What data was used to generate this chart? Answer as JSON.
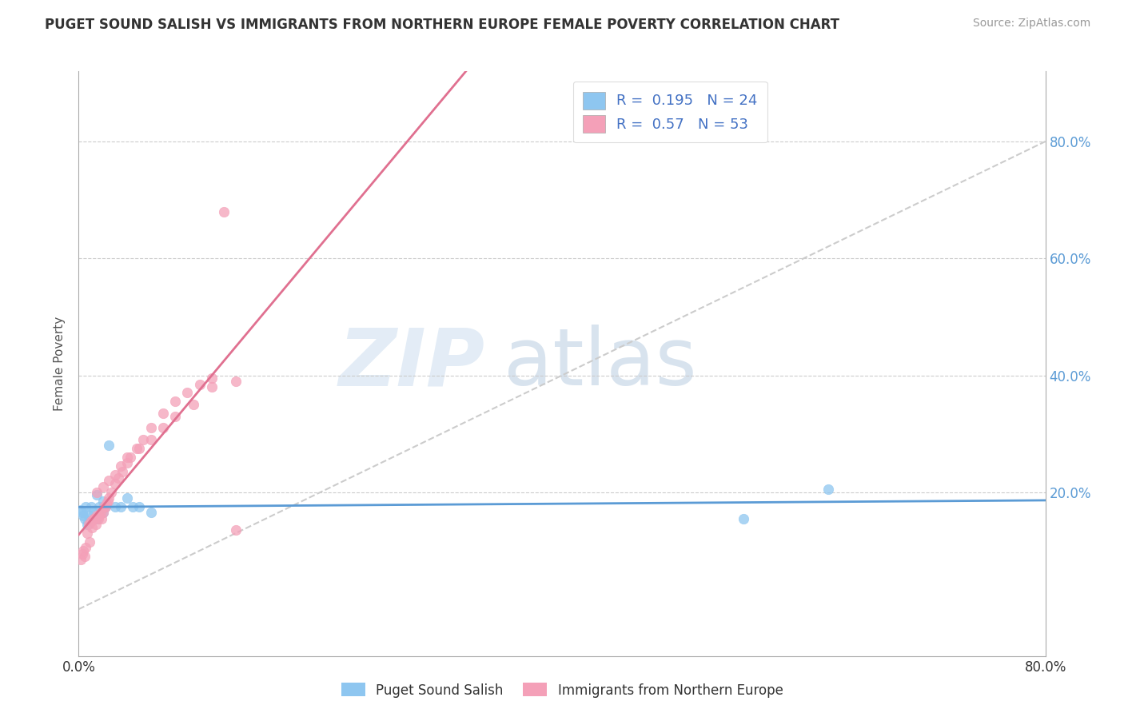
{
  "title": "PUGET SOUND SALISH VS IMMIGRANTS FROM NORTHERN EUROPE FEMALE POVERTY CORRELATION CHART",
  "source": "Source: ZipAtlas.com",
  "ylabel": "Female Poverty",
  "xlim": [
    0.0,
    0.8
  ],
  "ylim": [
    -0.08,
    0.92
  ],
  "xtick_labels": [
    "0.0%",
    "",
    "",
    "",
    "80.0%"
  ],
  "xtick_vals": [
    0.0,
    0.2,
    0.4,
    0.6,
    0.8
  ],
  "ytick_labels": [
    "20.0%",
    "40.0%",
    "60.0%",
    "80.0%"
  ],
  "ytick_vals": [
    0.2,
    0.4,
    0.6,
    0.8
  ],
  "legend_label1": "Puget Sound Salish",
  "legend_label2": "Immigrants from Northern Europe",
  "R1": 0.195,
  "N1": 24,
  "R2": 0.57,
  "N2": 53,
  "color1": "#8EC6F0",
  "color2": "#F4A0B8",
  "line_color1": "#5B9BD5",
  "line_color2": "#E07090",
  "blue_x": [
    0.002,
    0.003,
    0.004,
    0.005,
    0.006,
    0.007,
    0.008,
    0.01,
    0.012,
    0.015,
    0.017,
    0.02,
    0.022,
    0.025,
    0.03,
    0.035,
    0.04,
    0.045,
    0.05,
    0.06,
    0.015,
    0.02,
    0.55,
    0.62
  ],
  "blue_y": [
    0.17,
    0.165,
    0.16,
    0.155,
    0.175,
    0.145,
    0.16,
    0.175,
    0.165,
    0.155,
    0.175,
    0.165,
    0.175,
    0.28,
    0.175,
    0.175,
    0.19,
    0.175,
    0.175,
    0.165,
    0.195,
    0.185,
    0.155,
    0.205
  ],
  "pink_x": [
    0.002,
    0.003,
    0.004,
    0.005,
    0.006,
    0.007,
    0.008,
    0.009,
    0.01,
    0.011,
    0.012,
    0.013,
    0.014,
    0.015,
    0.016,
    0.017,
    0.018,
    0.019,
    0.02,
    0.021,
    0.022,
    0.023,
    0.024,
    0.025,
    0.027,
    0.03,
    0.033,
    0.036,
    0.04,
    0.043,
    0.048,
    0.053,
    0.06,
    0.07,
    0.08,
    0.09,
    0.1,
    0.11,
    0.12,
    0.13,
    0.015,
    0.02,
    0.025,
    0.03,
    0.035,
    0.04,
    0.05,
    0.06,
    0.07,
    0.08,
    0.095,
    0.11,
    0.13
  ],
  "pink_y": [
    0.085,
    0.095,
    0.1,
    0.09,
    0.105,
    0.13,
    0.145,
    0.115,
    0.15,
    0.14,
    0.155,
    0.155,
    0.145,
    0.16,
    0.155,
    0.16,
    0.165,
    0.155,
    0.165,
    0.175,
    0.175,
    0.18,
    0.185,
    0.19,
    0.2,
    0.215,
    0.225,
    0.235,
    0.25,
    0.26,
    0.275,
    0.29,
    0.31,
    0.335,
    0.355,
    0.37,
    0.385,
    0.395,
    0.68,
    0.135,
    0.2,
    0.21,
    0.22,
    0.23,
    0.245,
    0.26,
    0.275,
    0.29,
    0.31,
    0.33,
    0.35,
    0.38,
    0.39
  ]
}
